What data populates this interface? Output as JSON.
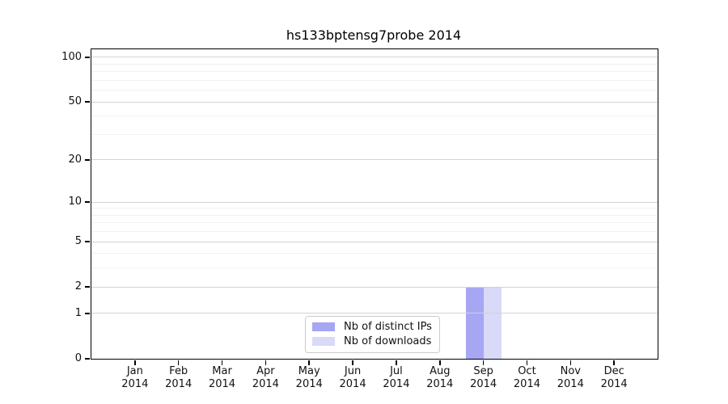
{
  "chart_data": {
    "type": "bar",
    "title": "hs133bptensg7probe 2014",
    "categories": [
      "Jan",
      "Feb",
      "Mar",
      "Apr",
      "May",
      "Jun",
      "Jul",
      "Aug",
      "Sep",
      "Oct",
      "Nov",
      "Dec"
    ],
    "category_year": "2014",
    "series": [
      {
        "name": "Nb of distinct IPs",
        "color": "#a6a6f3",
        "values": [
          0,
          0,
          0,
          0,
          0,
          0,
          0,
          0,
          2,
          0,
          0,
          0
        ]
      },
      {
        "name": "Nb of downloads",
        "color": "#d9d9f8",
        "values": [
          0,
          0,
          0,
          0,
          0,
          0,
          0,
          0,
          2,
          0,
          0,
          0
        ]
      }
    ],
    "y_scale": "log10(1+y)",
    "y_ticks": [
      0,
      1,
      2,
      5,
      10,
      20,
      50,
      100
    ],
    "y_minor_ticks": [
      3,
      4,
      6,
      7,
      8,
      9,
      30,
      40,
      60,
      70,
      80,
      90
    ],
    "ylim": [
      0,
      113
    ],
    "grid": true,
    "legend_position": "lower center"
  },
  "colors": {
    "background": "#ffffff",
    "axis": "#000000",
    "grid_major": "#d2d2d2",
    "grid_minor": "#f1f1f1",
    "text": "#111111",
    "legend_border": "#cccccc"
  }
}
